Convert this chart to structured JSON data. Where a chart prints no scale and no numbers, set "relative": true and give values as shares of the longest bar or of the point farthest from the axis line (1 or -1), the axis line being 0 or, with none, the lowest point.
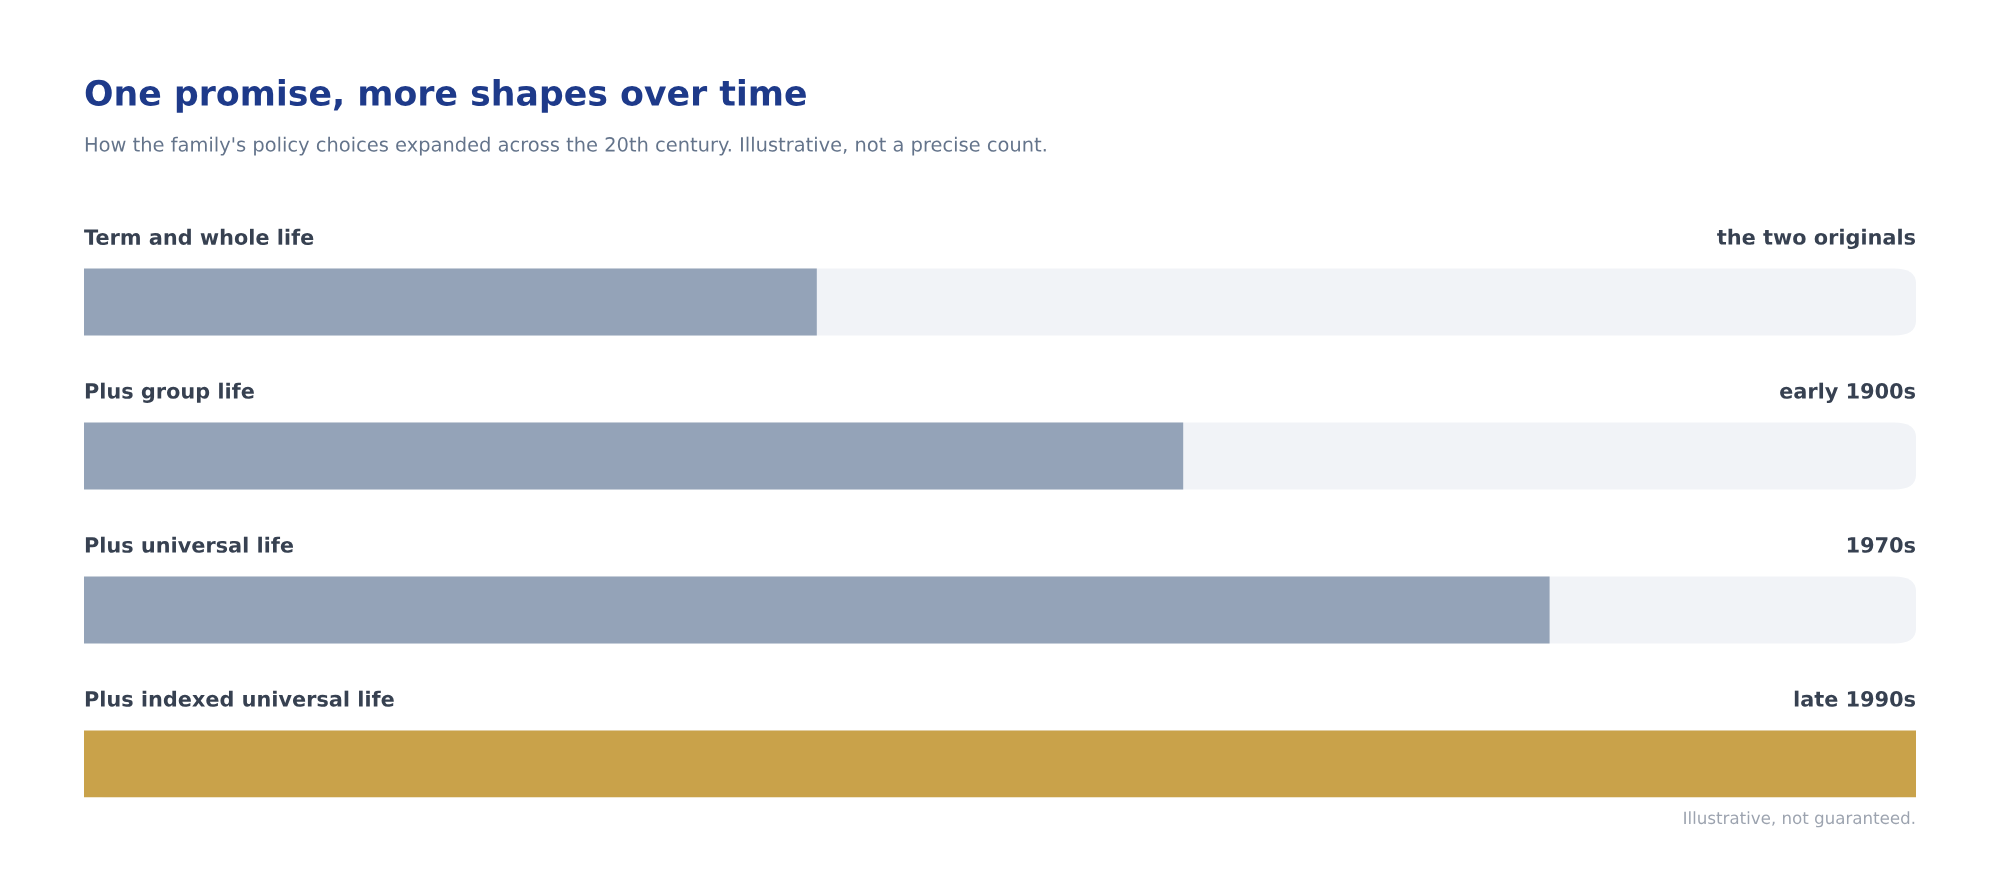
{
  "chart_data": {
    "type": "bar",
    "orientation": "horizontal",
    "relative": true,
    "title": "One promise, more shapes over time",
    "subtitle": "How the family's policy choices expanded across the 20th century. Illustrative, not a precise count.",
    "categories": [
      "Term and whole life",
      "Plus group life",
      "Plus universal life",
      "Plus indexed universal life"
    ],
    "values": [
      0.4,
      0.6,
      0.8,
      1
    ],
    "colors": [
      "#94a3b8",
      "#94a3b8",
      "#94a3b8",
      "#c9a24a"
    ],
    "annotations": [
      "the two originals",
      "early 1900s",
      "1970s",
      "late 1990s",
      "Illustrative, not guaranteed."
    ]
  }
}
